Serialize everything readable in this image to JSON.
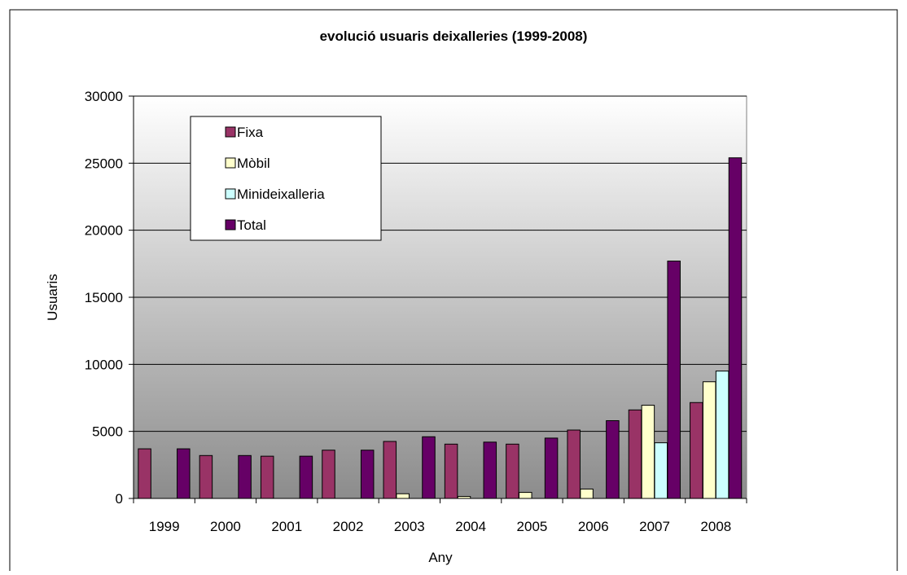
{
  "chart_data": {
    "type": "bar",
    "title": "evolució usuaris deixalleries (1999-2008)",
    "xlabel": "Any",
    "ylabel": "Usuaris",
    "ylim": [
      0,
      30000
    ],
    "yticks": [
      0,
      5000,
      10000,
      15000,
      20000,
      25000,
      30000
    ],
    "grid": true,
    "legend_position": "top-left",
    "categories": [
      "1999",
      "2000",
      "2001",
      "2002",
      "2003",
      "2004",
      "2005",
      "2006",
      "2007",
      "2008"
    ],
    "series": [
      {
        "name": "Fixa",
        "color": "#993366",
        "values": [
          3700,
          3200,
          3150,
          3600,
          4250,
          4050,
          4050,
          5100,
          6600,
          7150
        ]
      },
      {
        "name": "Mòbil",
        "color": "#ffffcc",
        "values": [
          0,
          0,
          0,
          0,
          350,
          150,
          450,
          700,
          6950,
          8700
        ]
      },
      {
        "name": "Minideixalleria",
        "color": "#ccffff",
        "values": [
          0,
          0,
          0,
          0,
          0,
          0,
          0,
          0,
          4150,
          9500
        ]
      },
      {
        "name": "Total",
        "color": "#660066",
        "values": [
          3700,
          3200,
          3150,
          3600,
          4600,
          4200,
          4500,
          5800,
          17700,
          25400
        ]
      }
    ]
  }
}
